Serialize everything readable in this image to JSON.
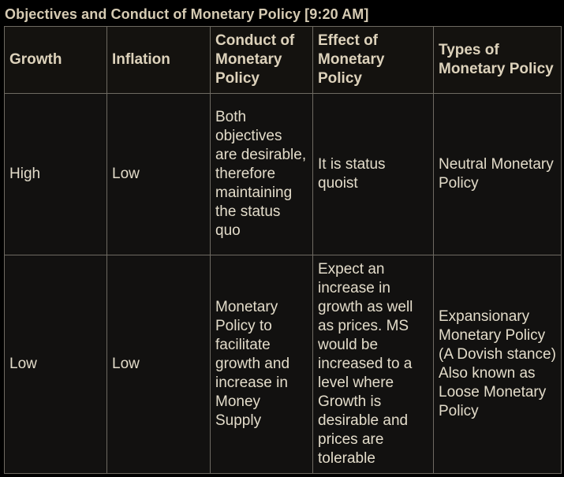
{
  "title": "Objectives and Conduct of Monetary Policy",
  "timestamp": "[9:20 AM]",
  "table": {
    "headers": [
      "Growth",
      "Inflation",
      "Conduct of Monetary Policy",
      "Effect of Monetary Policy",
      "Types of Monetary Policy"
    ],
    "rows": [
      {
        "growth": "High",
        "inflation": "Low",
        "conduct": "Both objectives are desirable, therefore maintaining the status quo",
        "effect": "It is status quoist",
        "type": "Neutral Monetary Policy"
      },
      {
        "growth": "Low",
        "inflation": "Low",
        "conduct": "Monetary Policy to facilitate growth and increase in Money Supply",
        "effect": "Expect an increase in growth as well as prices. MS would be increased to a level where Growth is desirable and prices are tolerable",
        "type": "Expansionary Monetary Policy (A Dovish stance) Also known as Loose Monetary Policy"
      }
    ]
  },
  "colors": {
    "background": "#000000",
    "cell_background": "#121110",
    "border": "#6e6a62",
    "text": "#e3dcca"
  }
}
